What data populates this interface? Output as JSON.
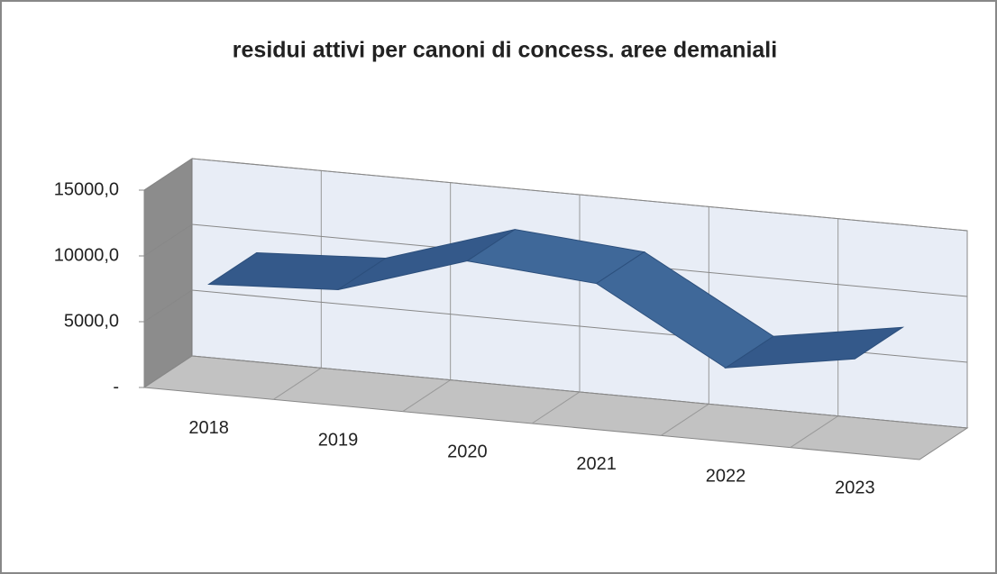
{
  "chart_data": {
    "type": "line3d",
    "title": "residui attivi per canoni di concess. aree demaniali",
    "categories": [
      "2018",
      "2019",
      "2020",
      "2021",
      "2022",
      "2023"
    ],
    "values": [
      8300,
      8800,
      11900,
      11100,
      5600,
      7200
    ],
    "color": "#3f6899",
    "ylim": [
      0,
      15000
    ],
    "yticks": [
      {
        "value": 0,
        "label": "-"
      },
      {
        "value": 5000,
        "label": "5000,0"
      },
      {
        "value": 10000,
        "label": "10000,0"
      },
      {
        "value": 15000,
        "label": "15000,0"
      }
    ],
    "grid": true
  }
}
